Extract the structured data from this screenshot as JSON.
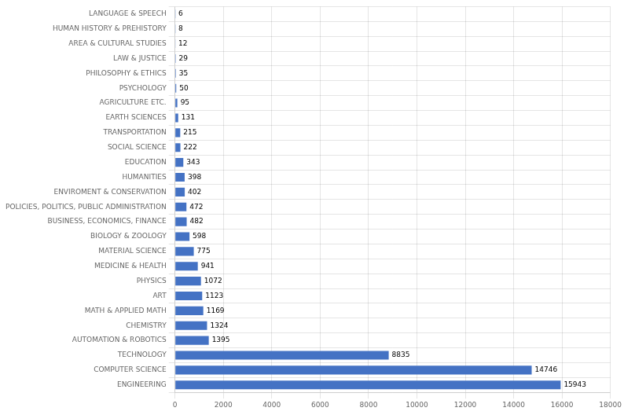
{
  "chart_data": {
    "type": "bar",
    "orientation": "horizontal",
    "categories": [
      "LANGUAGE & SPEECH",
      "HUMAN HISTORY & PREHISTORY",
      "AREA & CULTURAL STUDIES",
      "LAW & JUSTICE",
      "PHILOSOPHY & ETHICS",
      "PSYCHOLOGY",
      "AGRICULTURE ETC.",
      "EARTH SCIENCES",
      "TRANSPORTATION",
      "SOCIAL SCIENCE",
      "EDUCATION",
      "HUMANITIES",
      "ENVIROMENT & CONSERVATION",
      "POLICIES, POLITICS, PUBLIC ADMINISTRATION",
      "BUSINESS, ECONOMICS, FINANCE",
      "BIOLOGY & ZOOLOGY",
      "MATERIAL SCIENCE",
      "MEDICINE & HEALTH",
      "PHYSICS",
      "ART",
      "MATH & APPLIED MATH",
      "CHEMISTRY",
      "AUTOMATION & ROBOTICS",
      "TECHNOLOGY",
      "COMPUTER SCIENCE",
      "ENGINEERING"
    ],
    "values": [
      6,
      8,
      12,
      29,
      35,
      50,
      95,
      131,
      215,
      222,
      343,
      398,
      402,
      472,
      482,
      598,
      775,
      941,
      1072,
      1123,
      1169,
      1324,
      1395,
      8835,
      14746,
      15943
    ],
    "color": "#4472C4",
    "xlim": [
      0,
      18000
    ],
    "xticks": [
      0,
      2000,
      4000,
      6000,
      8000,
      10000,
      12000,
      14000,
      16000,
      18000
    ],
    "grid": true,
    "data_labels": true
  }
}
